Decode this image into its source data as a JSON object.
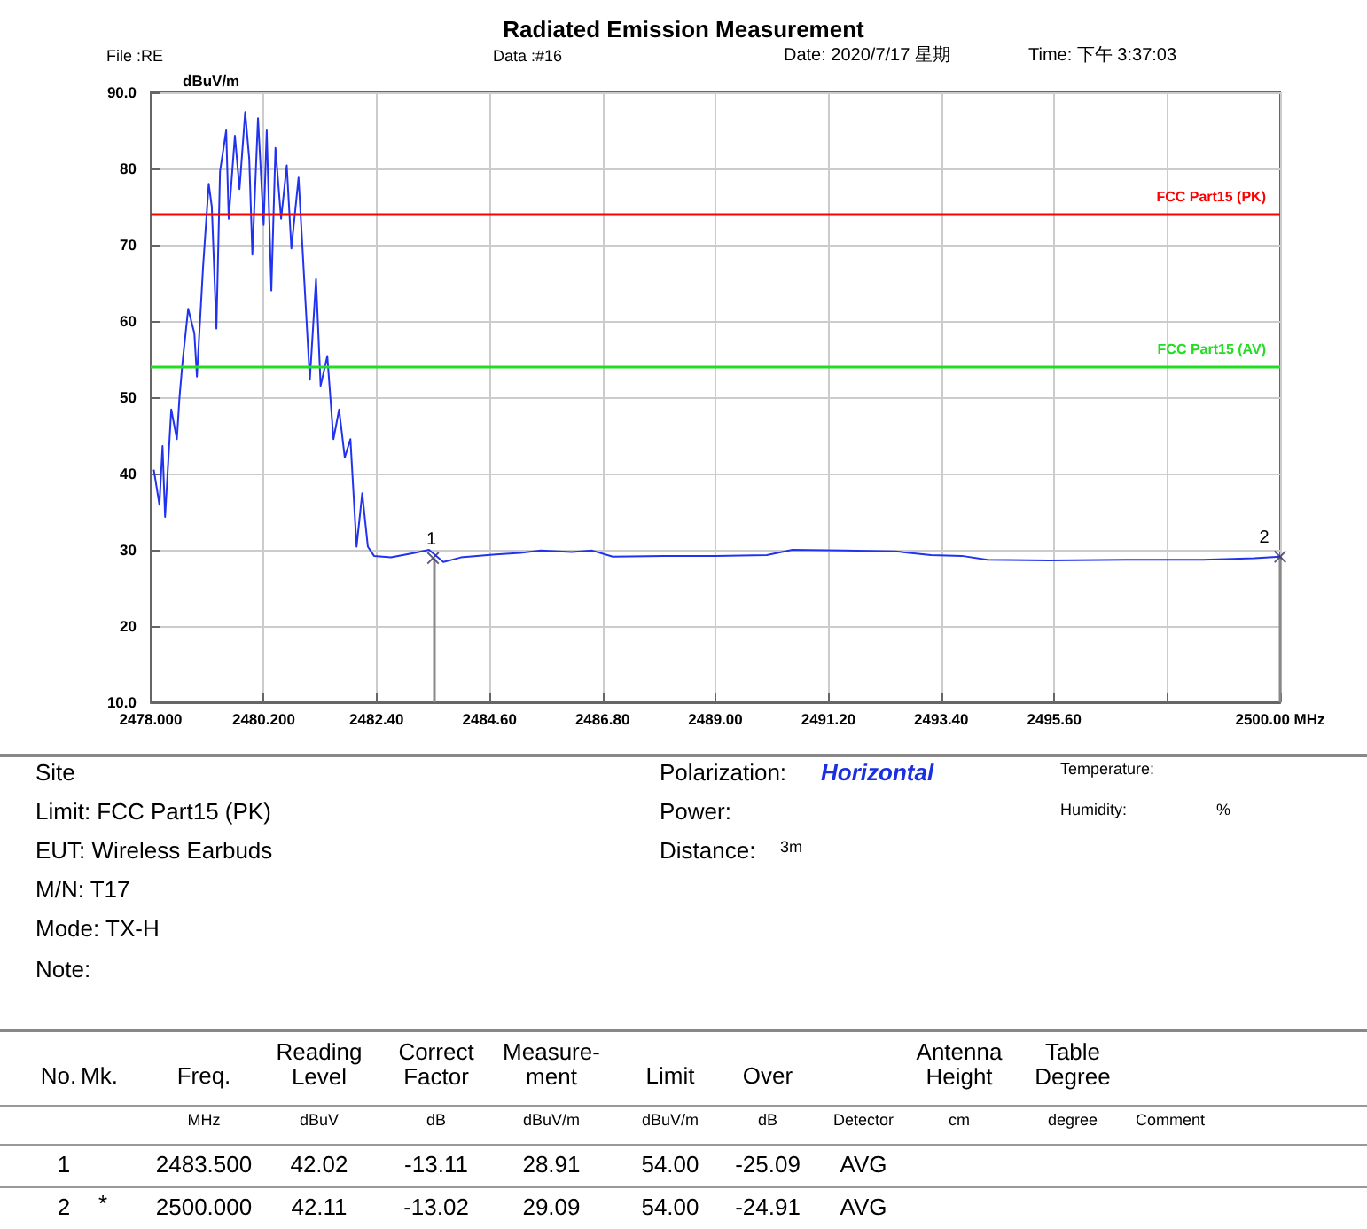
{
  "chart_data": {
    "type": "line",
    "title": "Radiated Emission Measurement",
    "ylabel": "dBuV/m",
    "xlim": [
      2478,
      2500
    ],
    "xticks": [
      {
        "value": 2478,
        "label": "2478.000"
      },
      {
        "value": 2480.2,
        "label": "2480.200"
      },
      {
        "value": 2482.4,
        "label": "2482.40"
      },
      {
        "value": 2484.6,
        "label": "2484.60"
      },
      {
        "value": 2486.8,
        "label": "2486.80"
      },
      {
        "value": 2489,
        "label": "2489.00"
      },
      {
        "value": 2491.2,
        "label": "2491.20"
      },
      {
        "value": 2493.4,
        "label": "2493.40"
      },
      {
        "value": 2495.6,
        "label": "2495.60"
      },
      {
        "value": 2497.8,
        "label": null
      },
      {
        "value": 2500,
        "label": "2500.00 MHz"
      }
    ],
    "ylim": [
      10,
      90
    ],
    "yticks": [
      {
        "value": 10,
        "label": "10.0"
      },
      20,
      30,
      40,
      50,
      60,
      70,
      80,
      {
        "value": 90,
        "label": "90.0"
      }
    ],
    "grid": true,
    "series": [
      {
        "color": "#2233ee",
        "marker": "none",
        "x": [
          2478.06,
          2478.17,
          2478.23,
          2478.28,
          2478.4,
          2478.51,
          2478.56,
          2478.62,
          2478.73,
          2478.85,
          2478.9,
          2479.02,
          2479.13,
          2479.19,
          2479.28,
          2479.35,
          2479.47,
          2479.52,
          2479.64,
          2479.73,
          2479.84,
          2479.92,
          2479.98,
          2480.09,
          2480.2,
          2480.26,
          2480.35,
          2480.43,
          2480.54,
          2480.65,
          2480.74,
          2480.88,
          2480.99,
          2481.1,
          2481.22,
          2481.31,
          2481.44,
          2481.56,
          2481.67,
          2481.78,
          2481.89,
          2482.01,
          2482.12,
          2482.23,
          2482.35,
          2482.68,
          2483.14,
          2483.42,
          2483.7,
          2484.04,
          2484.72,
          2485.2,
          2485.6,
          2486.2,
          2486.6,
          2487,
          2488,
          2489,
          2490,
          2490.5,
          2491.5,
          2492.5,
          2493.2,
          2493.8,
          2494.3,
          2495.5,
          2497,
          2498.5,
          2499.5,
          2500
        ],
        "values": [
          40.5,
          35.9,
          43.6,
          34.3,
          48.4,
          44.5,
          49.9,
          54.6,
          61.6,
          58.4,
          52.7,
          67.1,
          78,
          75,
          59,
          79.6,
          85,
          73.4,
          84.3,
          77.3,
          87.4,
          81.2,
          68.7,
          86.6,
          72.6,
          85,
          64,
          82.7,
          73.4,
          80.4,
          69.5,
          78.8,
          65.5,
          52.3,
          65.5,
          51.5,
          55.4,
          44.5,
          48.4,
          42.1,
          44.5,
          30.4,
          37.4,
          30.4,
          29.2,
          29,
          29.6,
          30,
          28.4,
          29,
          29.4,
          29.6,
          29.9,
          29.7,
          29.9,
          29.1,
          29.2,
          29.2,
          29.3,
          30,
          29.9,
          29.8,
          29.3,
          29.2,
          28.7,
          28.6,
          28.7,
          28.7,
          28.9,
          29.1
        ]
      },
      {
        "type": "scatter",
        "color": "#333366",
        "marker": "cross",
        "x": [
          2483.5,
          2500
        ],
        "values": [
          28.91,
          29.09
        ]
      }
    ],
    "ref_lines": [
      {
        "axis": "y",
        "value": 74,
        "label": "FCC Part15 (PK)",
        "color": "#ff0000"
      },
      {
        "axis": "y",
        "value": 54,
        "label": "FCC Part15 (AV)",
        "color": "#22dd22"
      }
    ],
    "annotations": [
      "File :RE",
      "Data :#16",
      "Date: 2020/7/17 星期",
      "Time: 下午 3:37:03",
      "Site",
      "Limit: FCC Part15 (PK)",
      "EUT: Wireless Earbuds",
      "M/N: T17",
      "Mode: TX-H",
      "Note:",
      "Polarization:",
      "Horizontal",
      "Power:",
      "Distance:",
      "3m",
      "Temperature:",
      "Humidity:",
      "%",
      "No.",
      "Mk.",
      "Freq.",
      "Reading Level",
      "Correct Factor",
      "Measure-ment",
      "Limit",
      "Over",
      "Antenna Height",
      "Table Degree",
      "MHz",
      "dBuV",
      "dB",
      "dBuV/m",
      "dBuV/m",
      "dB",
      "Detector",
      "cm",
      "degree",
      "Comment",
      "1",
      "2483.500",
      "42.02",
      "-13.11",
      "28.91",
      "54.00",
      "-25.09",
      "AVG",
      "2",
      "*",
      "2500.000",
      "42.11",
      "-13.02",
      "29.09",
      "54.00",
      "-24.91",
      "AVG",
      {
        "text": "1",
        "x": 2483.5,
        "y": 28.91
      },
      {
        "text": "2",
        "x": 2500,
        "y": 29.09
      }
    ]
  }
}
